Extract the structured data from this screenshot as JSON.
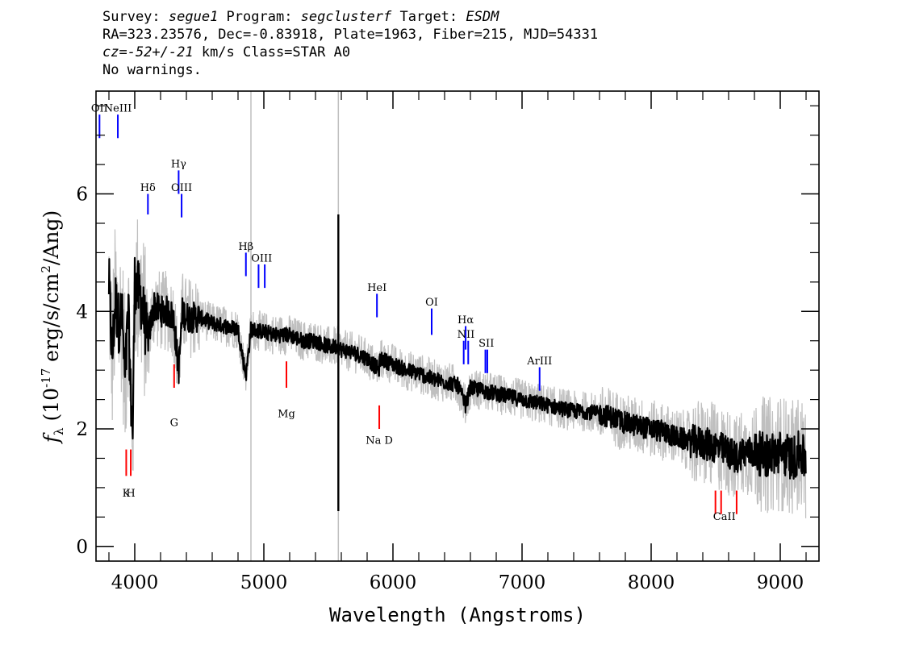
{
  "header": {
    "survey_label": "Survey: ",
    "survey": "segue1",
    "program_label": " Program: ",
    "program": "segclusterf",
    "target_label": " Target: ",
    "target": "ESDM",
    "line2": "RA=323.23576, Dec=-0.83918, Plate=1963, Fiber=215, MJD=54331",
    "cz": "cz=-52+/-21",
    "cz_rest": " km/s Class=STAR A0",
    "line4": "No warnings."
  },
  "chart_data": {
    "type": "line",
    "xlabel": "Wavelength (Angstroms)",
    "ylabel": "f_λ (10^-17 erg/s/cm^2/Ang)",
    "xlim": [
      3700,
      9300
    ],
    "ylim": [
      -0.25,
      7.75
    ],
    "x_ticks": [
      4000,
      5000,
      6000,
      7000,
      8000,
      9000
    ],
    "y_ticks": [
      0,
      2,
      4,
      6
    ],
    "grid": false,
    "colors": {
      "flux": "#000000",
      "error": "#bfbfbf",
      "emission": "#0000ff",
      "absorption": "#ff0000",
      "sky": "#bfbfbf"
    },
    "sky_lines": [
      4900,
      5577
    ],
    "series": [
      {
        "role": "smoothed",
        "x": [
          3800,
          3825,
          3850,
          3875,
          3900,
          3925,
          3950,
          3970,
          3985,
          4000,
          4050,
          4100,
          4150,
          4200,
          4250,
          4300,
          4340,
          4370,
          4400,
          4500,
          4600,
          4700,
          4800,
          4861,
          4900,
          5000,
          5100,
          5200,
          5300,
          5400,
          5500,
          5577,
          5600,
          5700,
          5800,
          5893,
          5900,
          6000,
          6100,
          6200,
          6300,
          6400,
          6500,
          6563,
          6600,
          6700,
          6800,
          6900,
          7000,
          7100,
          7200,
          7300,
          7400,
          7500,
          7600,
          7700,
          7800,
          7900,
          8000,
          8100,
          8200,
          8300,
          8400,
          8500,
          8600,
          8662,
          8700,
          8800,
          8900,
          9000,
          9100,
          9150,
          9200
        ],
        "y": [
          4.5,
          3.2,
          4.2,
          3.8,
          4.0,
          2.8,
          4.0,
          2.5,
          2.0,
          4.5,
          4.2,
          3.5,
          4.1,
          4.0,
          4.0,
          3.9,
          3.0,
          4.0,
          3.9,
          3.9,
          3.8,
          3.75,
          3.7,
          2.9,
          3.7,
          3.65,
          3.6,
          3.6,
          3.5,
          3.5,
          3.4,
          3.4,
          3.35,
          3.3,
          3.2,
          3.0,
          3.2,
          3.1,
          3.0,
          2.95,
          2.85,
          2.8,
          2.75,
          2.4,
          2.7,
          2.65,
          2.6,
          2.55,
          2.5,
          2.45,
          2.4,
          2.35,
          2.3,
          2.3,
          2.25,
          2.2,
          2.1,
          2.05,
          2.0,
          1.95,
          1.85,
          1.8,
          1.75,
          1.7,
          1.6,
          1.5,
          1.6,
          1.6,
          1.55,
          1.6,
          1.5,
          1.6,
          1.45
        ]
      }
    ],
    "lines": [
      {
        "label": "OII",
        "x": 3727,
        "type": "emission",
        "y": [
          6.95,
          7.35
        ],
        "label_y": 7.4
      },
      {
        "label": "NeIII",
        "x": 3869,
        "type": "emission",
        "y": [
          6.95,
          7.35
        ],
        "label_y": 7.4
      },
      {
        "label": "Hδ",
        "x": 4102,
        "type": "emission",
        "y": [
          5.65,
          6.0
        ],
        "label_y": 6.05
      },
      {
        "label": "Hγ",
        "x": 4340,
        "type": "emission",
        "y": [
          6.0,
          6.4
        ],
        "label_y": 6.45
      },
      {
        "label": "OIII",
        "x": 4363,
        "type": "emission",
        "y": [
          5.6,
          6.0
        ],
        "label_y": 6.05
      },
      {
        "label": "Hβ",
        "x": 4861,
        "type": "emission",
        "y": [
          4.6,
          5.0
        ],
        "label_y": 5.05
      },
      {
        "label": "OIII",
        "x": 4959,
        "type": "emission",
        "y": [
          4.4,
          4.8
        ],
        "label_y": 4.85
      },
      {
        "label": "OIII",
        "x": 5007,
        "type": "emission",
        "y": [
          4.4,
          4.8
        ],
        "label_y": 4.85
      },
      {
        "label": "HeI",
        "x": 5876,
        "type": "emission",
        "y": [
          3.9,
          4.3
        ],
        "label_y": 4.35
      },
      {
        "label": "OI",
        "x": 6300,
        "type": "emission",
        "y": [
          3.6,
          4.05
        ],
        "label_y": 4.1
      },
      {
        "label": "NII",
        "x": 6548,
        "type": "emission",
        "y": [
          3.1,
          3.5
        ],
        "label_y": 3.55
      },
      {
        "label": "Hα",
        "x": 6563,
        "type": "emission",
        "y": [
          3.35,
          3.75
        ],
        "label_y": 3.8
      },
      {
        "label": "NII",
        "x": 6583,
        "type": "emission",
        "y": [
          3.1,
          3.5
        ],
        "label_y": 3.55
      },
      {
        "label": "SII",
        "x": 6716,
        "type": "emission",
        "y": [
          2.95,
          3.35
        ],
        "label_y": 3.4
      },
      {
        "label": "SII",
        "x": 6731,
        "type": "emission",
        "y": [
          2.95,
          3.35
        ],
        "label_y": 3.4
      },
      {
        "label": "ArIII",
        "x": 7136,
        "type": "emission",
        "y": [
          2.65,
          3.05
        ],
        "label_y": 3.1
      },
      {
        "label": "K",
        "x": 3934,
        "type": "absorption",
        "y": [
          1.2,
          1.65
        ],
        "label_y": 0.85
      },
      {
        "label": "H",
        "x": 3969,
        "type": "absorption",
        "y": [
          1.2,
          1.65
        ],
        "label_y": 0.85
      },
      {
        "label": "G",
        "x": 4305,
        "type": "absorption",
        "y": [
          2.7,
          3.1
        ],
        "label_y": 2.05
      },
      {
        "label": "Mg",
        "x": 5175,
        "type": "absorption",
        "y": [
          2.7,
          3.15
        ],
        "label_y": 2.2
      },
      {
        "label": "Na D",
        "x": 5894,
        "type": "absorption",
        "y": [
          2.0,
          2.4
        ],
        "label_y": 1.75
      },
      {
        "label": "CaII",
        "x": 8498,
        "type": "absorption",
        "y": [
          0.55,
          0.95
        ],
        "label_y": 0.45
      },
      {
        "label": "CaII",
        "x": 8542,
        "type": "absorption",
        "y": [
          0.55,
          0.95
        ],
        "label_y": 0.45
      },
      {
        "label": "CaII",
        "x": 8662,
        "type": "absorption",
        "y": [
          0.55,
          0.95
        ],
        "label_y": 0.45
      }
    ]
  }
}
